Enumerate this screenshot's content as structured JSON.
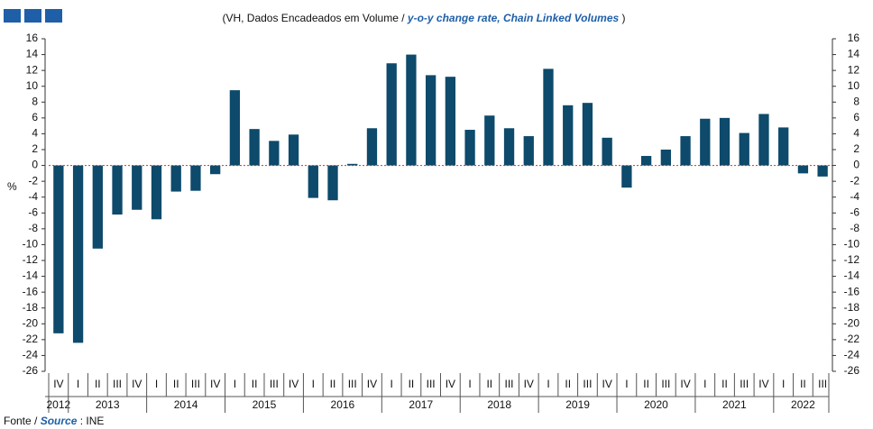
{
  "chart_data": {
    "type": "bar",
    "title": "(VH, Dados Encadeados em Volume /",
    "title_en": "y-o-y change rate, Chain Linked Volumes",
    "title_close": ")",
    "y_label": "%",
    "source_label": "Fonte /",
    "source_label_en": "Source",
    "source": ": INE",
    "color": "#0d4a6b",
    "ylim": [
      -26,
      16
    ],
    "yticks": [
      16,
      14,
      12,
      10,
      8,
      6,
      4,
      2,
      0,
      -2,
      -4,
      -6,
      -8,
      -10,
      -12,
      -14,
      -16,
      -18,
      -20,
      -22,
      -24,
      -26
    ],
    "groups": [
      {
        "label": "2012",
        "categories": [
          "IV"
        ],
        "values": [
          -21.2
        ]
      },
      {
        "label": "2013",
        "categories": [
          "I",
          "II",
          "III",
          "IV"
        ],
        "values": [
          -22.4,
          -10.5,
          -6.2,
          -5.6
        ]
      },
      {
        "label": "2014",
        "categories": [
          "I",
          "II",
          "III",
          "IV"
        ],
        "values": [
          -6.8,
          -3.3,
          -3.2,
          -1.1
        ]
      },
      {
        "label": "2015",
        "categories": [
          "I",
          "II",
          "III",
          "IV"
        ],
        "values": [
          9.5,
          4.6,
          3.1,
          3.9
        ]
      },
      {
        "label": "2016",
        "categories": [
          "I",
          "II",
          "III",
          "IV"
        ],
        "values": [
          -4.1,
          -4.4,
          0.2,
          4.7
        ]
      },
      {
        "label": "2017",
        "categories": [
          "I",
          "II",
          "III",
          "IV"
        ],
        "values": [
          12.9,
          14.0,
          11.4,
          11.2
        ]
      },
      {
        "label": "2018",
        "categories": [
          "I",
          "II",
          "III",
          "IV"
        ],
        "values": [
          4.5,
          6.3,
          4.7,
          3.7
        ]
      },
      {
        "label": "2019",
        "categories": [
          "I",
          "II",
          "III",
          "IV"
        ],
        "values": [
          12.2,
          7.6,
          7.9,
          3.5
        ]
      },
      {
        "label": "2020",
        "categories": [
          "I",
          "II",
          "III",
          "IV"
        ],
        "values": [
          -2.8,
          1.2,
          2.0,
          3.7
        ]
      },
      {
        "label": "2021",
        "categories": [
          "I",
          "II",
          "III",
          "IV"
        ],
        "values": [
          5.9,
          6.0,
          4.1,
          6.5
        ]
      },
      {
        "label": "2022",
        "categories": [
          "I",
          "II",
          "III"
        ],
        "values": [
          4.8,
          -1.0,
          -1.4
        ]
      }
    ]
  }
}
